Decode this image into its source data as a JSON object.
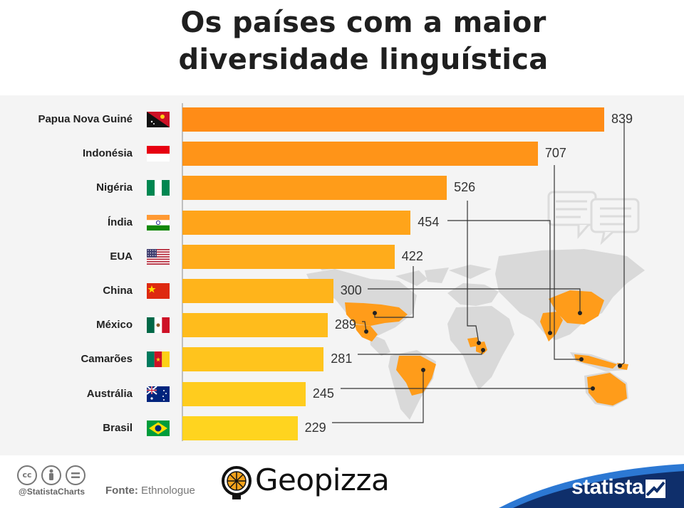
{
  "title": {
    "line1": "Os países com a maior",
    "line2": "diversidade linguística"
  },
  "colors": {
    "bar_top": "#ff8c17",
    "bar_bottom": "#ffd21f",
    "map_land": "#d9d9d9",
    "map_highlight": "#ff9c1a",
    "background": "#f4f4f4",
    "statista_blue": "#0f2f6b"
  },
  "chart_data": {
    "type": "bar",
    "orientation": "horizontal",
    "categories": [
      "Papua Nova Guiné",
      "Indonésia",
      "Nigéria",
      "Índia",
      "EUA",
      "China",
      "México",
      "Camarões",
      "Austrália",
      "Brasil"
    ],
    "values": [
      839,
      707,
      526,
      454,
      422,
      300,
      289,
      281,
      245,
      229
    ],
    "value_labels": [
      "839",
      "707",
      "526",
      "454",
      "422",
      "300",
      "289",
      "281",
      "245",
      "229"
    ],
    "flags": [
      "papua-new-guinea",
      "indonesia",
      "nigeria",
      "india",
      "usa",
      "china",
      "mexico",
      "cameroon",
      "australia",
      "brazil"
    ],
    "xlim": [
      0,
      900
    ],
    "grid": false,
    "legend": "none"
  },
  "footer": {
    "handle": "@StatistaCharts",
    "source_label": "Fonte:",
    "source_value": "Ethnologue",
    "geopizza_logo": "Geopizza",
    "statista_logo": "statista",
    "cc_icons": [
      "cc",
      "by",
      "nd"
    ]
  }
}
